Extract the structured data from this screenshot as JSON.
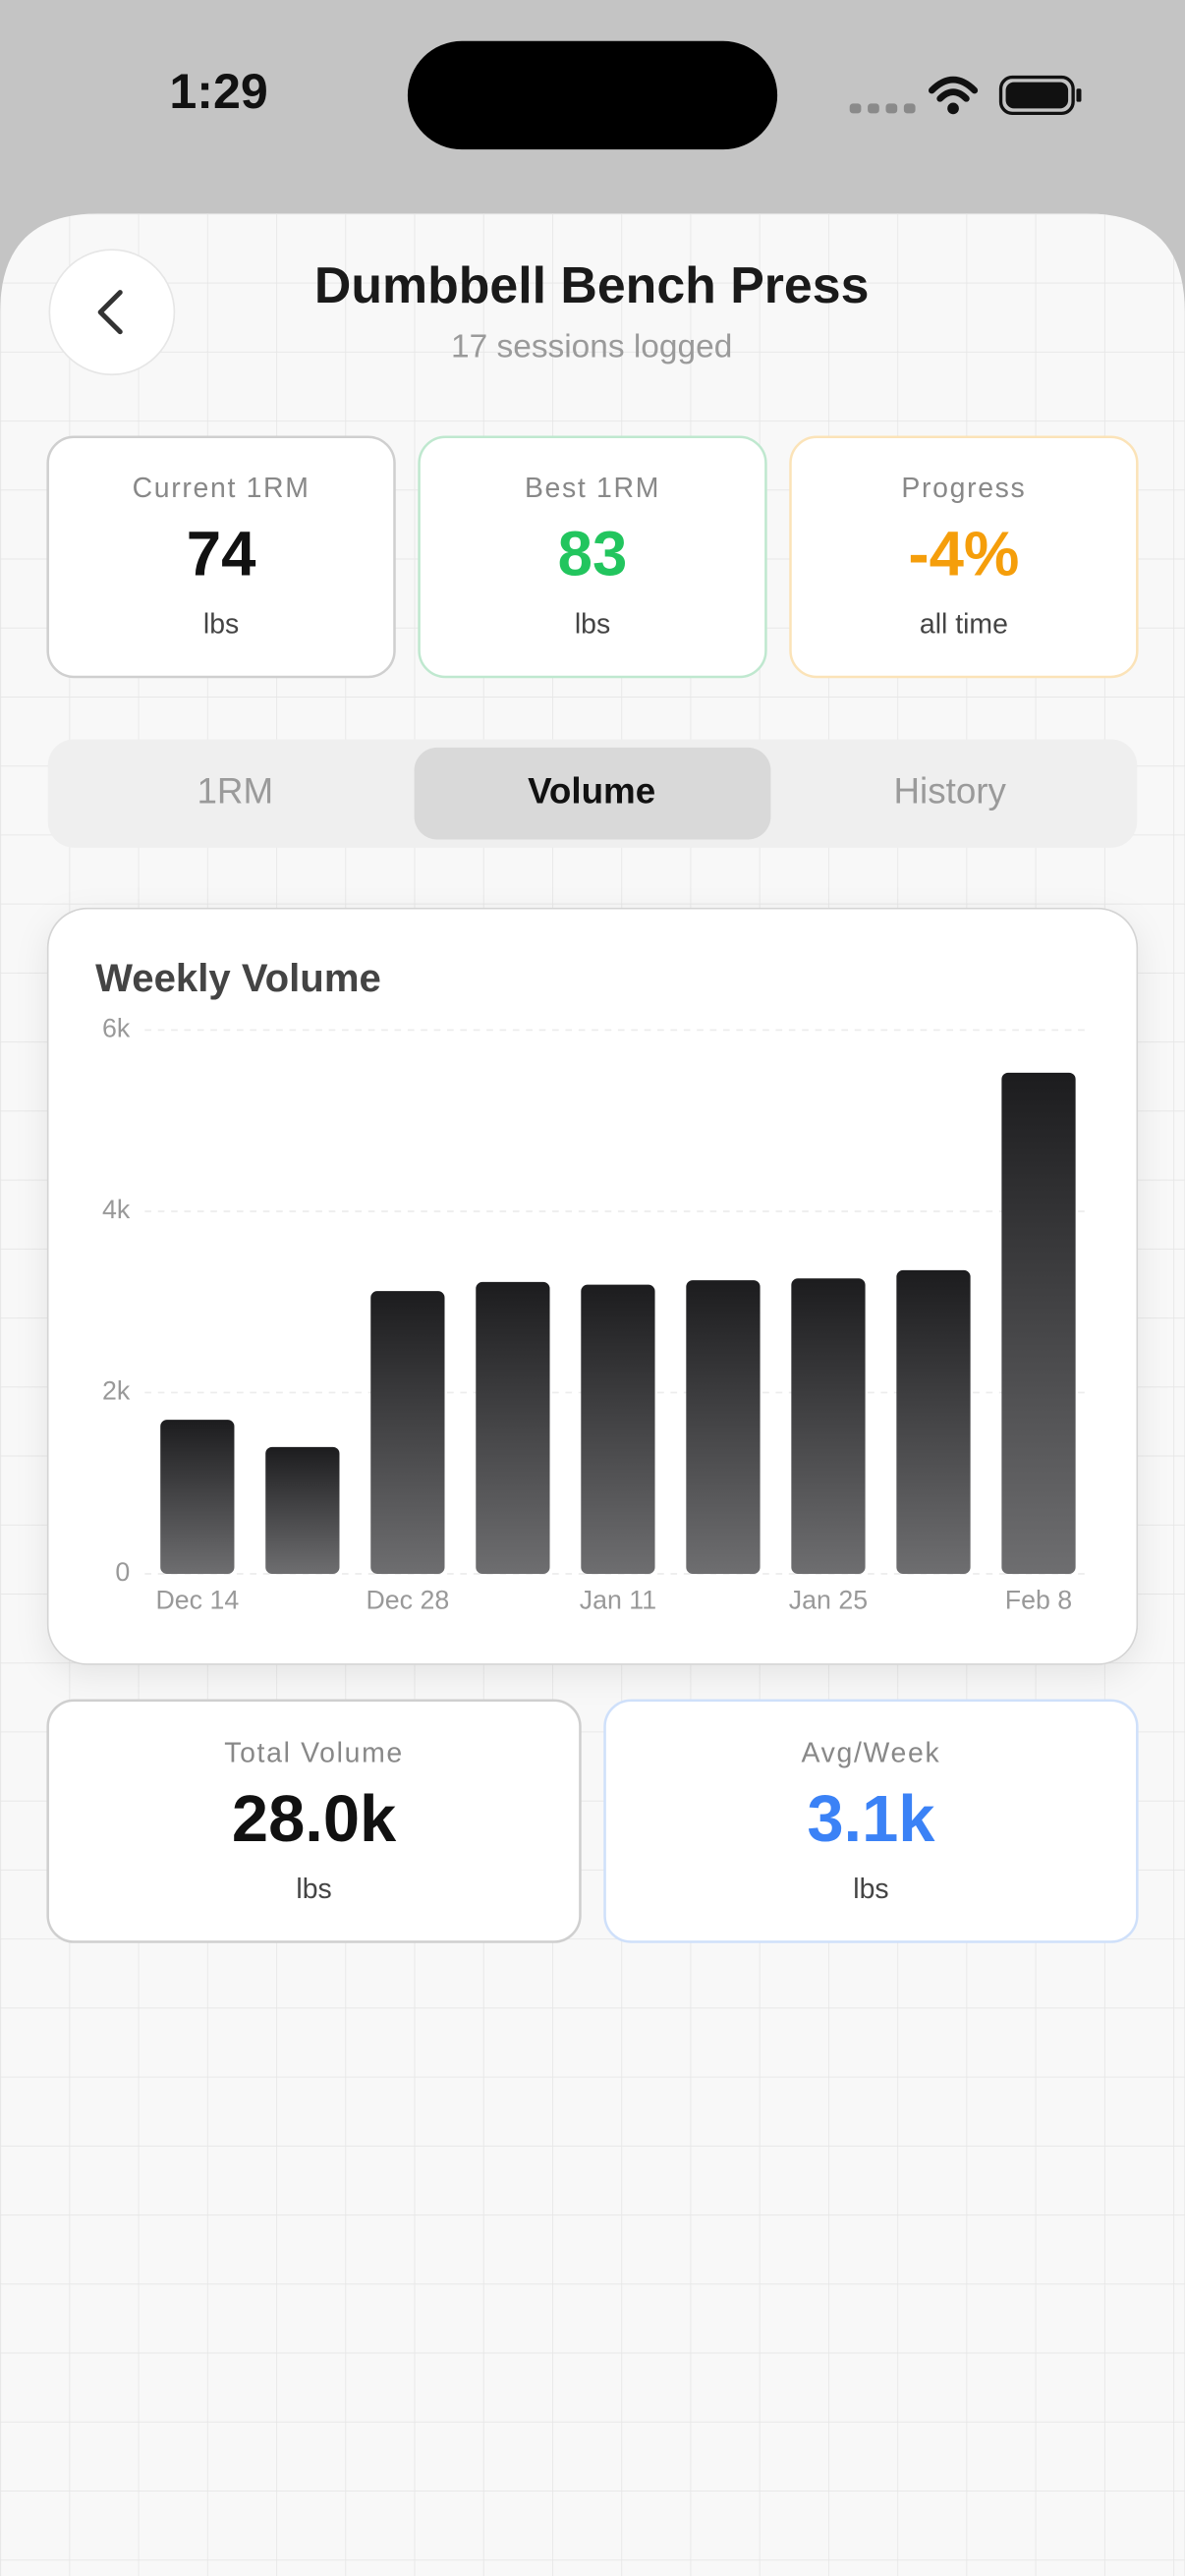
{
  "status_bar": {
    "time": "1:29"
  },
  "header": {
    "title": "Dumbbell Bench Press",
    "subtitle": "17 sessions logged"
  },
  "stats": [
    {
      "label": "Current 1RM",
      "value": "74",
      "unit": "lbs"
    },
    {
      "label": "Best 1RM",
      "value": "83",
      "unit": "lbs"
    },
    {
      "label": "Progress",
      "value": "-4%",
      "unit": "all time"
    }
  ],
  "tabs": [
    "1RM",
    "Volume",
    "History"
  ],
  "chart_data": {
    "type": "bar",
    "title": "Weekly Volume",
    "categories": [
      "Dec 14",
      null,
      "Dec 28",
      null,
      "Jan 11",
      null,
      "Jan 25",
      null,
      "Feb 8"
    ],
    "values": [
      1700,
      1400,
      3120,
      3220,
      3190,
      3240,
      3260,
      3350,
      5530
    ],
    "ylim": [
      0,
      6000
    ],
    "yticks": [
      0,
      {
        "value": 2000,
        "label": "2k"
      },
      {
        "value": 4000,
        "label": "4k"
      },
      {
        "value": 6000,
        "label": "6k"
      }
    ],
    "grid": true
  },
  "summary": [
    {
      "label": "Total Volume",
      "value": "28.0k",
      "unit": "lbs"
    },
    {
      "label": "Avg/Week",
      "value": "3.1k",
      "unit": "lbs"
    }
  ]
}
